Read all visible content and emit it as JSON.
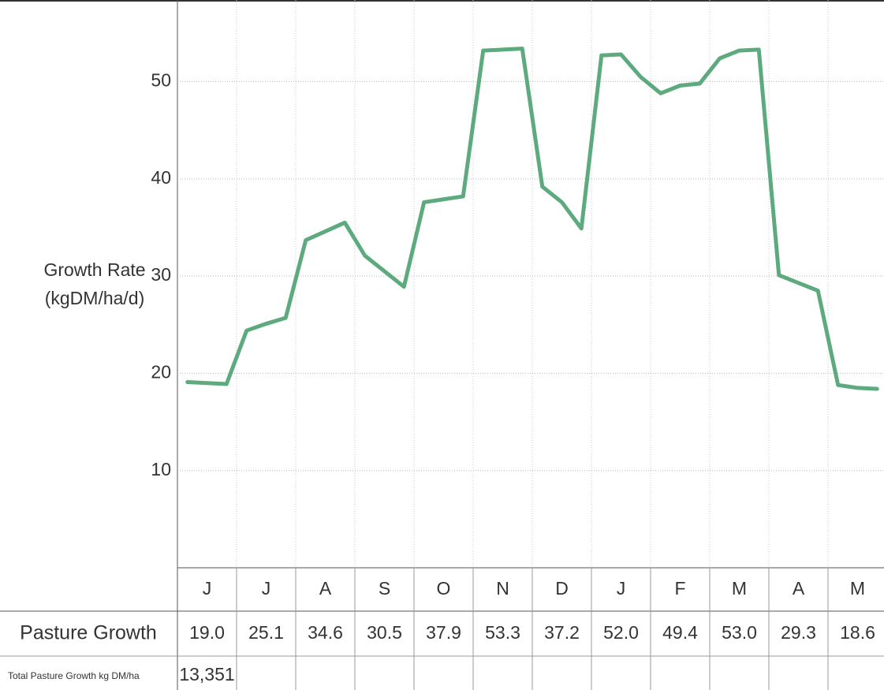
{
  "chart_data": {
    "type": "line",
    "y_label": [
      "Growth Rate",
      "(kgDM/ha/d)"
    ],
    "categories": [
      "J",
      "J",
      "A",
      "S",
      "O",
      "N",
      "D",
      "J",
      "F",
      "M",
      "A",
      "M"
    ],
    "x": [
      0.17,
      0.5,
      0.83,
      1.17,
      1.5,
      1.83,
      2.17,
      2.5,
      2.83,
      3.17,
      3.5,
      3.83,
      4.17,
      4.5,
      4.83,
      5.17,
      5.5,
      5.83,
      6.17,
      6.5,
      6.83,
      7.17,
      7.5,
      7.83,
      8.17,
      8.5,
      8.83,
      9.17,
      9.5,
      9.83,
      10.17,
      10.5,
      10.83,
      11.17,
      11.5,
      11.83
    ],
    "series": [
      {
        "name": "Growth Rate",
        "color": "#5daa7e",
        "values": [
          19.1,
          19.0,
          18.9,
          24.4,
          25.1,
          25.7,
          33.7,
          34.6,
          35.5,
          32.1,
          30.5,
          28.9,
          37.6,
          37.9,
          38.2,
          53.2,
          53.3,
          53.4,
          39.2,
          37.6,
          34.9,
          52.7,
          52.8,
          50.5,
          48.8,
          49.6,
          49.8,
          52.4,
          53.2,
          53.3,
          30.1,
          29.3,
          28.5,
          18.8,
          18.5,
          18.4
        ]
      }
    ],
    "xlim": [
      0,
      12
    ],
    "ylim": [
      0,
      58.4
    ],
    "yticks": [
      10,
      20,
      30,
      40,
      50
    ],
    "grid": true,
    "table": {
      "rows": [
        {
          "label": "Pasture Growth",
          "cells": [
            "19.0",
            "25.1",
            "34.6",
            "30.5",
            "37.9",
            "53.3",
            "37.2",
            "52.0",
            "49.4",
            "53.0",
            "29.3",
            "18.6"
          ]
        },
        {
          "label": "Total Pasture Growth kg DM/ha",
          "cells": [
            "13,351"
          ]
        }
      ]
    }
  }
}
